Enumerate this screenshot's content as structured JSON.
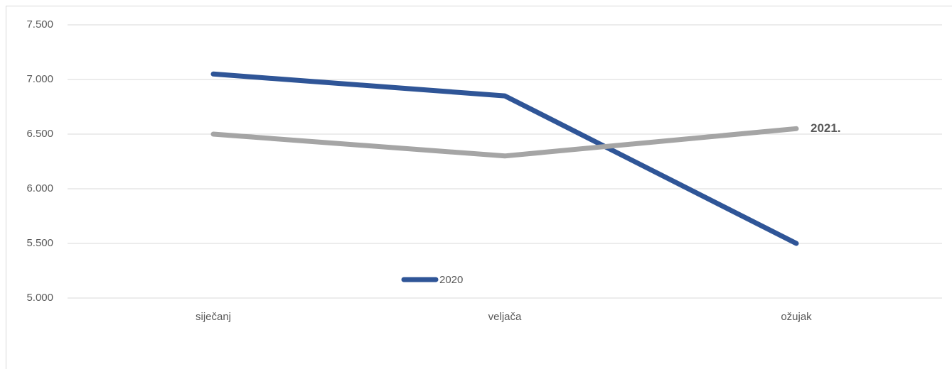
{
  "chart_data": {
    "type": "line",
    "categories": [
      "siječanj",
      "veljača",
      "ožujak"
    ],
    "series": [
      {
        "name": "2020",
        "color": "#2f5597",
        "values": [
          7050,
          6850,
          5500
        ]
      },
      {
        "name": "2021.",
        "color": "#a5a5a5",
        "values": [
          6500,
          6300,
          6550
        ]
      }
    ],
    "ylim": [
      5000,
      7500
    ],
    "yticks": [
      {
        "value": 5000,
        "label": "5.000"
      },
      {
        "value": 5500,
        "label": "5.500"
      },
      {
        "value": 6000,
        "label": "6.000"
      },
      {
        "value": 6500,
        "label": "6.500"
      },
      {
        "value": 7000,
        "label": "7.000"
      },
      {
        "value": 7500,
        "label": "7.500"
      }
    ],
    "grid": true
  }
}
